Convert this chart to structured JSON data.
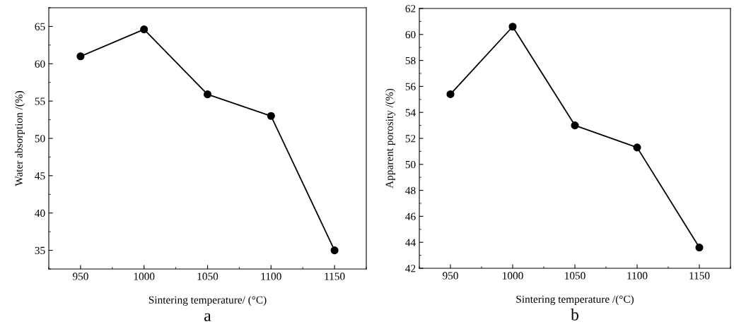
{
  "chart_data": [
    {
      "type": "line",
      "xlabel": "Sintering temperature/ (°C)",
      "ylabel": "Water absorption /(%)",
      "annotations": [
        "a"
      ],
      "x": [
        950,
        1000,
        1050,
        1100,
        1150
      ],
      "series": [
        {
          "color": "#000000",
          "values": [
            61.0,
            64.6,
            55.9,
            53.0,
            35.0
          ]
        }
      ],
      "xlim": [
        925,
        1175
      ],
      "xticks": [
        950,
        1000,
        1050,
        1100,
        1150
      ],
      "ylim": [
        32.5,
        67.5
      ],
      "yticks": [
        35,
        40,
        45,
        50,
        55,
        60,
        65
      ],
      "marker": "circle",
      "line_style": "solid",
      "grid": false,
      "legend": false
    },
    {
      "type": "line",
      "xlabel": "Sintering temperature /(°C)",
      "ylabel": "Apparent porosity /(%)",
      "annotations": [
        "b"
      ],
      "x": [
        950,
        1000,
        1050,
        1100,
        1150
      ],
      "series": [
        {
          "color": "#000000",
          "values": [
            55.4,
            60.6,
            53.0,
            51.3,
            43.6
          ]
        }
      ],
      "xlim": [
        925,
        1175
      ],
      "xticks": [
        950,
        1000,
        1050,
        1100,
        1150
      ],
      "ylim": [
        42,
        62
      ],
      "yticks": [
        42,
        44,
        46,
        48,
        50,
        52,
        54,
        56,
        58,
        60,
        62
      ],
      "marker": "circle",
      "line_style": "solid",
      "grid": false,
      "legend": false
    }
  ]
}
